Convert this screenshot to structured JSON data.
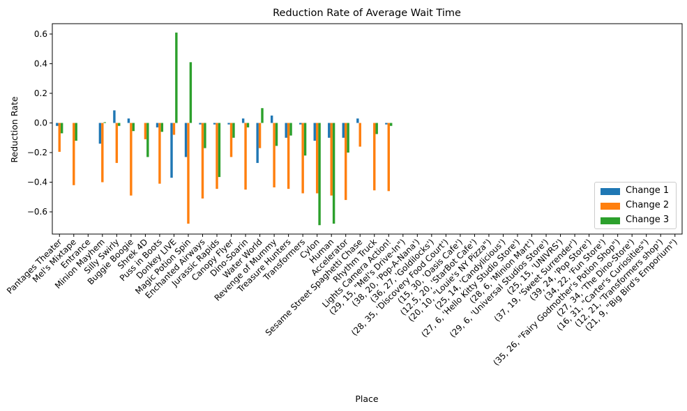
{
  "chart_data": {
    "type": "bar",
    "title": "Reduction Rate of Average Wait Time",
    "xlabel": "Place",
    "ylabel": "Reduction Rate",
    "ylim": [
      -0.75,
      0.67
    ],
    "yticks": [
      -0.6,
      -0.4,
      -0.2,
      0.0,
      0.2,
      0.4,
      0.6
    ],
    "ytick_labels": [
      "−0.6",
      "−0.4",
      "−0.2",
      "0.0",
      "0.2",
      "0.4",
      "0.6"
    ],
    "legend_position": "bottom-right",
    "grid": false,
    "categories": [
      "Pantages Theater",
      "Mel's Mixtape",
      "Entrance",
      "Minion Mayhem",
      "Silly Swirly",
      "Buggie Boogie",
      "Shrek 4D",
      "Puss in Boots",
      "Donkey LIVE",
      "Magic Potion Spin",
      "Enchanted Airways",
      "Jurassic Rapids",
      "Canopy Flyer",
      "Dino-Soarin",
      "Water World",
      "Revenge of Mummy",
      "Treasure Hunters",
      "Transformers",
      "Cylon",
      "Human",
      "Accelerator",
      "Sesame Street Spaghetti Chase",
      "Rhythm Truck",
      "Lights Camera Action!",
      "(29, 15, \"Mel's Drive-In\")",
      "(38, 20, 'Pop-A-Nana')",
      "(36, 27, 'Goldilocks')",
      "(28, 35, 'Discovery Food Court')",
      "(15, 30, 'Oasis Cafe')",
      "(12.5, 20, 'StarBot Cafe')",
      "(20, 10, \"Louie's NY Pizza\")",
      "(25, 14, 'Candylicious')",
      "(27, 6, 'Hello Kitty Studio Store')",
      "(28, 6, 'Minion Mart')",
      "(29, 6, 'Universal Studios Store')",
      "(25, 15, 'UNIVRS')",
      "(37, 19, 'Sweet Surrender')",
      "(39, 24, 'Pop Store')",
      "(34, 22, 'Fun Store')",
      "(35, 26, \"Fairy Godmother's Potion Shop\")",
      "(27, 34, 'The Dino-Store')",
      "(16, 31, \"Carter's Curiosities\")",
      "(12, 21, 'Transformers shop')",
      "(21, 9, \"Big Bird's Emporium\")"
    ],
    "series": [
      {
        "name": "Change 1",
        "color": "#1f77b4",
        "values": [
          -0.02,
          null,
          null,
          -0.14,
          0.085,
          0.03,
          null,
          -0.03,
          -0.37,
          -0.23,
          -0.01,
          -0.01,
          -0.01,
          0.03,
          -0.27,
          0.05,
          -0.1,
          -0.01,
          -0.12,
          -0.1,
          -0.1,
          0.03,
          null,
          -0.01,
          null,
          null,
          null,
          null,
          null,
          null,
          null,
          null,
          null,
          null,
          null,
          null,
          null,
          null,
          null,
          null,
          null,
          null,
          null,
          null
        ]
      },
      {
        "name": "Change 2",
        "color": "#ff7f0e",
        "values": [
          -0.195,
          -0.42,
          null,
          -0.4,
          -0.27,
          -0.49,
          -0.11,
          -0.41,
          -0.08,
          -0.68,
          -0.51,
          -0.445,
          -0.23,
          -0.45,
          -0.17,
          -0.435,
          -0.445,
          -0.475,
          -0.475,
          -0.49,
          -0.52,
          -0.16,
          -0.455,
          -0.46,
          null,
          null,
          null,
          null,
          null,
          null,
          null,
          null,
          null,
          null,
          null,
          null,
          null,
          null,
          null,
          null,
          null,
          null,
          null,
          null
        ]
      },
      {
        "name": "Change 3",
        "color": "#2ca02c",
        "values": [
          -0.07,
          -0.12,
          null,
          0.005,
          -0.02,
          -0.055,
          -0.23,
          -0.06,
          0.61,
          0.41,
          -0.17,
          -0.365,
          -0.1,
          -0.03,
          0.1,
          -0.155,
          -0.085,
          -0.22,
          -0.69,
          -0.68,
          -0.2,
          null,
          -0.075,
          -0.02,
          null,
          null,
          null,
          null,
          null,
          null,
          null,
          null,
          null,
          null,
          null,
          null,
          null,
          null,
          null,
          null,
          null,
          null,
          null,
          null
        ]
      }
    ]
  }
}
